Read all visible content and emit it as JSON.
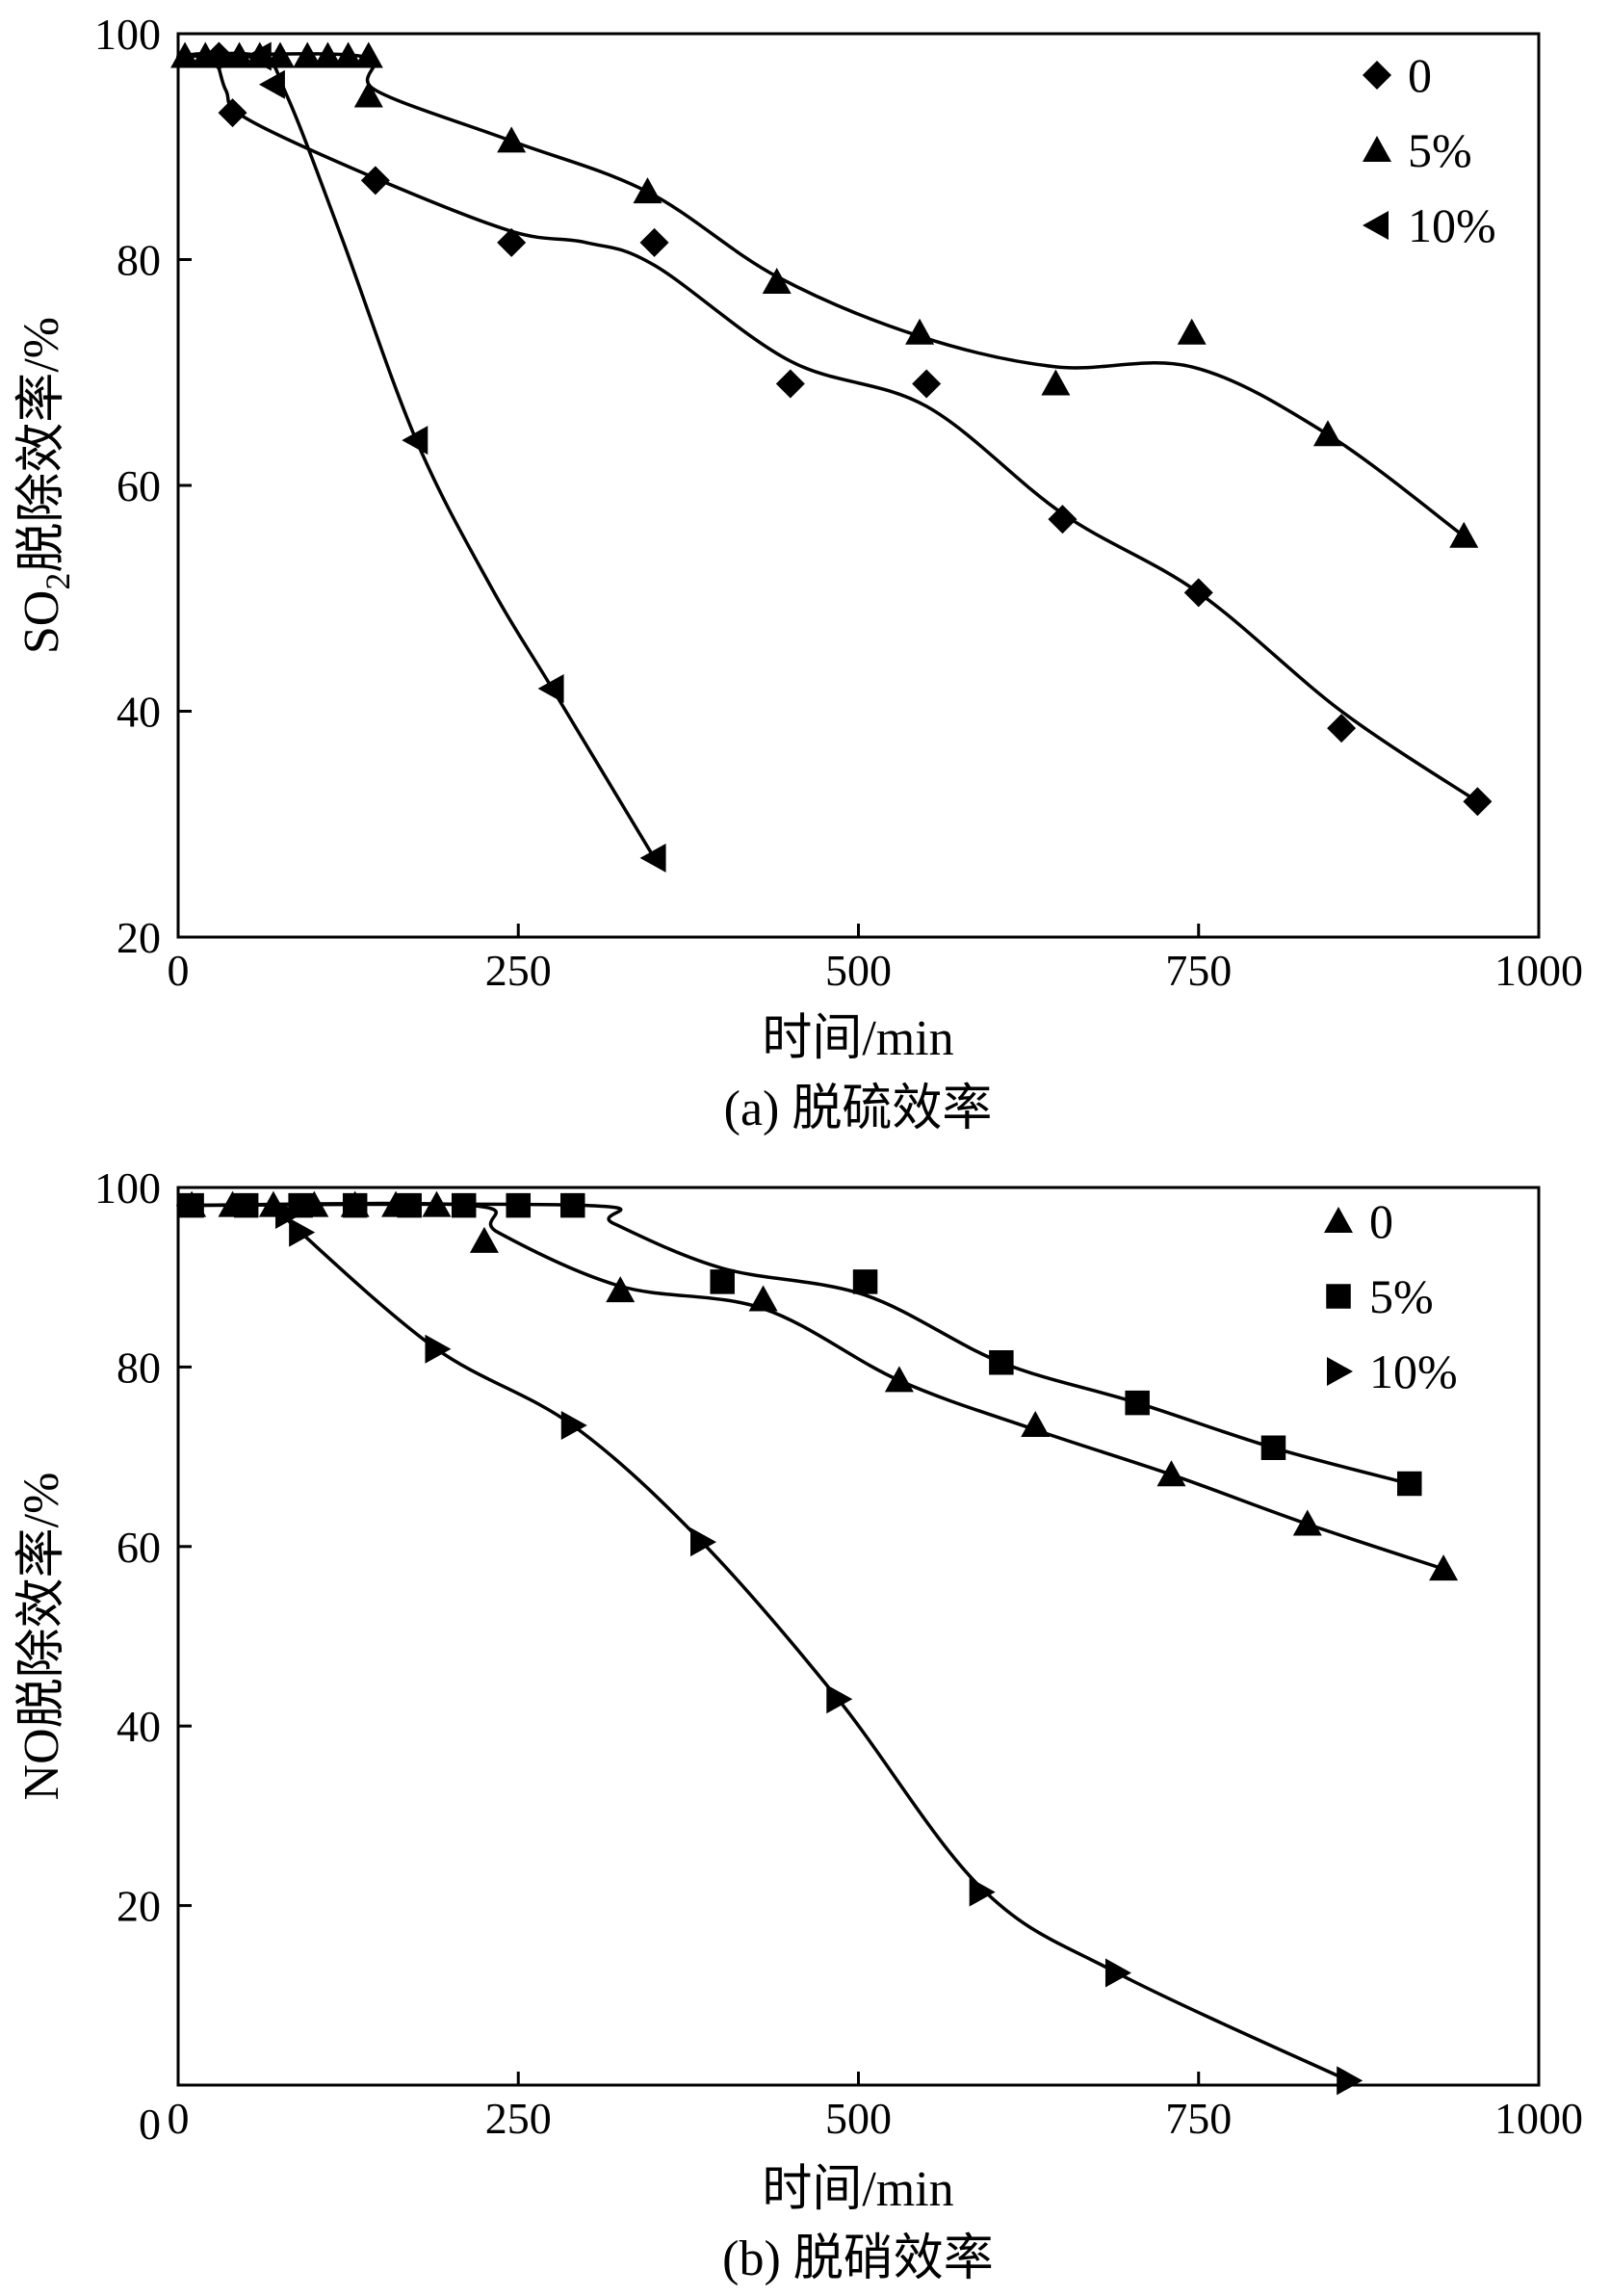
{
  "chart_data": [
    {
      "type": "line",
      "caption": "(a) 脱硫效率",
      "xlabel": "时间/min",
      "ylabel_main": "SO",
      "ylabel_sub": "2",
      "ylabel_rest": "脱除效率/%",
      "xlim": [
        0,
        1000
      ],
      "ylim": [
        20,
        100
      ],
      "xticks": [
        0,
        250,
        500,
        750,
        1000
      ],
      "yticks": [
        20,
        40,
        60,
        80,
        100
      ],
      "legend_position": "top-right",
      "series": [
        {
          "name": "0",
          "marker": "diamond",
          "points": [
            [
              30,
              98
            ],
            [
              40,
              93
            ],
            [
              145,
              87
            ],
            [
              245,
              81.5
            ],
            [
              350,
              81.5
            ],
            [
              450,
              69
            ],
            [
              550,
              69
            ],
            [
              650,
              57
            ],
            [
              750,
              50.5
            ],
            [
              855,
              38.5
            ],
            [
              955,
              32
            ]
          ],
          "curve": [
            [
              0,
              98
            ],
            [
              25,
              98
            ],
            [
              35,
              95
            ],
            [
              50,
              92.5
            ],
            [
              145,
              87.2
            ],
            [
              245,
              82.5
            ],
            [
              300,
              81.5
            ],
            [
              350,
              79.5
            ],
            [
              450,
              71
            ],
            [
              550,
              67
            ],
            [
              650,
              57.5
            ],
            [
              750,
              50.5
            ],
            [
              855,
              40
            ],
            [
              955,
              32
            ]
          ]
        },
        {
          "name": "5%",
          "marker": "triangle-up",
          "points": [
            [
              5,
              98
            ],
            [
              20,
              98
            ],
            [
              30,
              98
            ],
            [
              45,
              98
            ],
            [
              60,
              98
            ],
            [
              75,
              98
            ],
            [
              95,
              98
            ],
            [
              110,
              98
            ],
            [
              125,
              98
            ],
            [
              140,
              98
            ],
            [
              140,
              94.5
            ],
            [
              245,
              90.5
            ],
            [
              345,
              86
            ],
            [
              440,
              78
            ],
            [
              545,
              73.5
            ],
            [
              645,
              69
            ],
            [
              745,
              73.5
            ],
            [
              845,
              64.5
            ],
            [
              945,
              55.5
            ]
          ],
          "curve": [
            [
              0,
              98
            ],
            [
              135,
              98
            ],
            [
              145,
              95
            ],
            [
              245,
              90.5
            ],
            [
              345,
              86
            ],
            [
              440,
              78.5
            ],
            [
              545,
              73.2
            ],
            [
              645,
              70.5
            ],
            [
              745,
              70.5
            ],
            [
              845,
              64.5
            ],
            [
              945,
              55.5
            ]
          ]
        },
        {
          "name": "10%",
          "marker": "triangle-left",
          "points": [
            [
              60,
              98
            ],
            [
              70,
              95.5
            ],
            [
              175,
              64
            ],
            [
              275,
              42
            ],
            [
              350,
              27
            ]
          ],
          "curve": [
            [
              0,
              98
            ],
            [
              60,
              98
            ],
            [
              80,
              94.5
            ],
            [
              120,
              82
            ],
            [
              175,
              64
            ],
            [
              230,
              51
            ],
            [
              275,
              42
            ],
            [
              350,
              27
            ]
          ]
        }
      ]
    },
    {
      "type": "line",
      "caption": "(b) 脱硝效率",
      "xlabel": "时间/min",
      "ylabel_main": "NO脱除效率/%",
      "xlim": [
        0,
        1000
      ],
      "ylim": [
        0,
        100
      ],
      "xticks": [
        0,
        250,
        500,
        750,
        1000
      ],
      "yticks": [
        0,
        20,
        40,
        60,
        80,
        100
      ],
      "legend_position": "top-right",
      "series": [
        {
          "name": "0",
          "marker": "triangle-up",
          "points": [
            [
              10,
              98
            ],
            [
              40,
              98
            ],
            [
              70,
              98
            ],
            [
              100,
              98
            ],
            [
              130,
              98
            ],
            [
              160,
              98
            ],
            [
              190,
              98
            ],
            [
              225,
              94
            ],
            [
              325,
              88.5
            ],
            [
              430,
              87.5
            ],
            [
              530,
              78.5
            ],
            [
              630,
              73.5
            ],
            [
              730,
              68
            ],
            [
              830,
              62.5
            ],
            [
              930,
              57.5
            ]
          ],
          "curve": [
            [
              0,
              98
            ],
            [
              215,
              98
            ],
            [
              235,
              95
            ],
            [
              325,
              89
            ],
            [
              430,
              86.5
            ],
            [
              530,
              78.5
            ],
            [
              630,
              73
            ],
            [
              730,
              68
            ],
            [
              830,
              62.5
            ],
            [
              930,
              57.5
            ]
          ]
        },
        {
          "name": "5%",
          "marker": "square",
          "points": [
            [
              10,
              98
            ],
            [
              50,
              98
            ],
            [
              90,
              98
            ],
            [
              130,
              98
            ],
            [
              170,
              98
            ],
            [
              210,
              98
            ],
            [
              250,
              98
            ],
            [
              290,
              98
            ],
            [
              400,
              89.5
            ],
            [
              505,
              89.5
            ],
            [
              605,
              80.5
            ],
            [
              705,
              76
            ],
            [
              805,
              71
            ],
            [
              905,
              67
            ]
          ],
          "curve": [
            [
              0,
              98
            ],
            [
              300,
              98
            ],
            [
              320,
              96
            ],
            [
              400,
              91
            ],
            [
              505,
              88
            ],
            [
              605,
              80.5
            ],
            [
              705,
              76
            ],
            [
              805,
              71
            ],
            [
              905,
              67
            ]
          ]
        },
        {
          "name": "10%",
          "marker": "triangle-right",
          "points": [
            [
              80,
              97
            ],
            [
              90,
              95
            ],
            [
              190,
              82
            ],
            [
              290,
              73.5
            ],
            [
              385,
              60.5
            ],
            [
              485,
              43
            ],
            [
              590,
              21.5
            ],
            [
              690,
              12.5
            ],
            [
              860,
              0.5
            ]
          ],
          "curve": [
            [
              80,
              97
            ],
            [
              90,
              95
            ],
            [
              190,
              82
            ],
            [
              290,
              73.5
            ],
            [
              385,
              60.5
            ],
            [
              485,
              43
            ],
            [
              590,
              22
            ],
            [
              690,
              12.5
            ],
            [
              860,
              0.5
            ]
          ]
        }
      ]
    }
  ]
}
